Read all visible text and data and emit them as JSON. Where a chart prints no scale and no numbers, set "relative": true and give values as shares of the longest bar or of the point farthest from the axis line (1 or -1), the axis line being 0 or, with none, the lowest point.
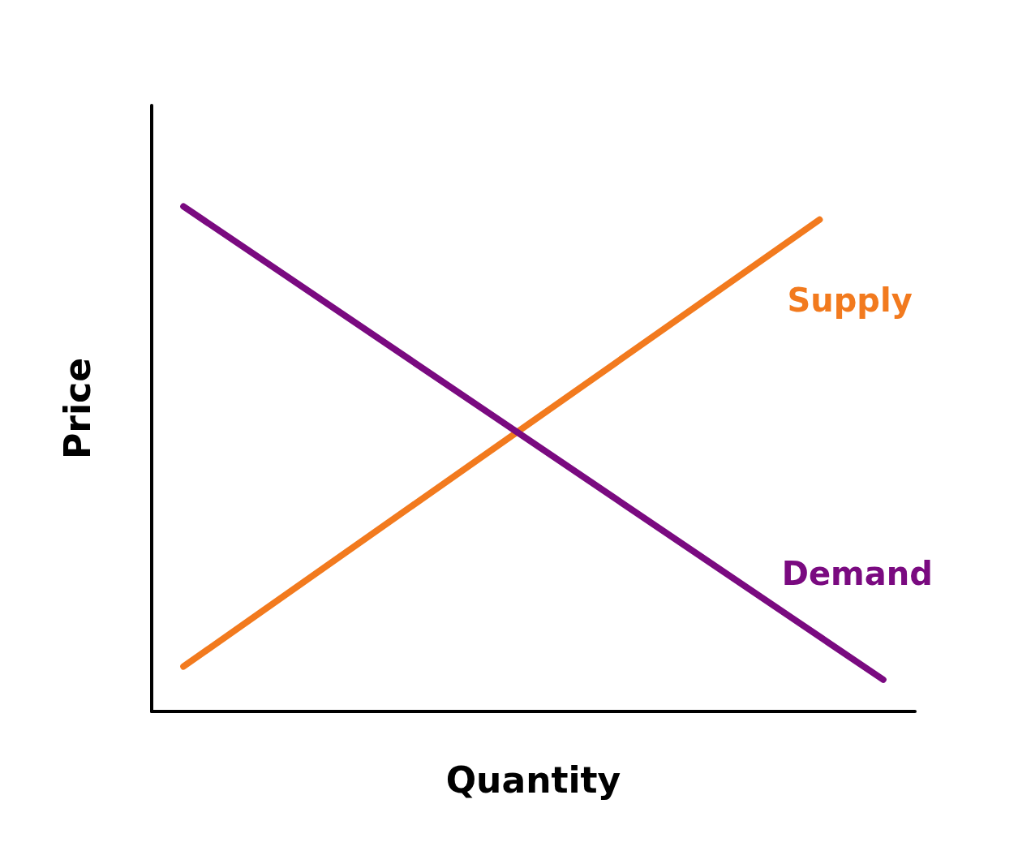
{
  "chart_data": {
    "type": "line",
    "xlabel": "Quantity",
    "ylabel": "Price",
    "relative": true,
    "marker": "none",
    "line_style": "solid",
    "categories": [
      null,
      null,
      null,
      null,
      null,
      null,
      null,
      null,
      null,
      null,
      null,
      null
    ],
    "series": [
      {
        "name": "Supply",
        "color": "#f27a1e",
        "values": [
          0.089,
          null,
          null,
          null,
          null,
          null,
          null,
          null,
          null,
          null,
          0.974,
          null
        ]
      },
      {
        "name": "Demand",
        "color": "#7a0a80",
        "values": [
          1,
          null,
          null,
          null,
          null,
          null,
          null,
          null,
          null,
          null,
          null,
          0.063
        ]
      }
    ]
  }
}
